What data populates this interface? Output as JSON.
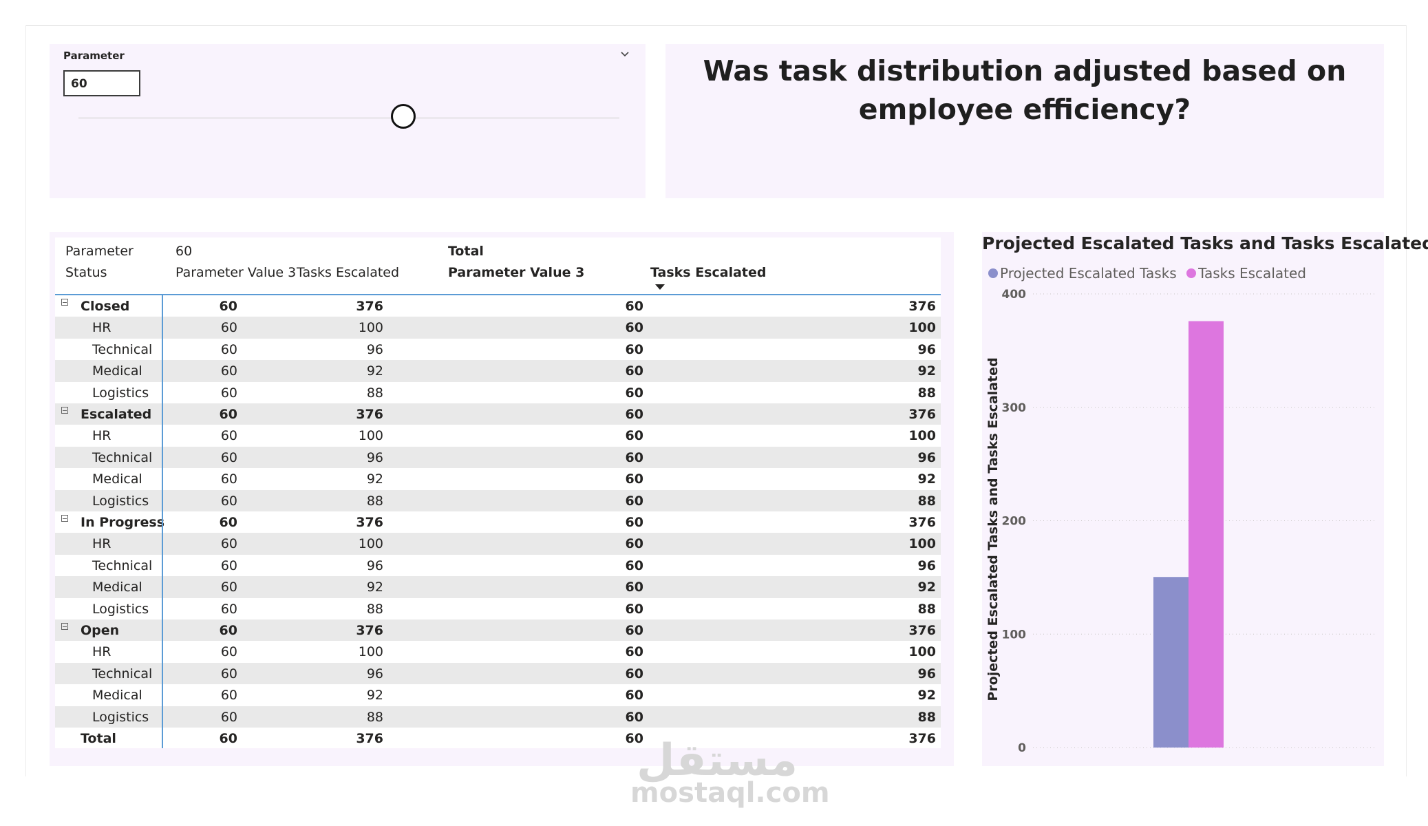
{
  "slicer": {
    "title": "Parameter",
    "value": "60",
    "slider_fraction": 0.6
  },
  "page_title": "Was task distribution adjusted based on employee efficiency?",
  "matrix": {
    "header_row1": {
      "parameter_label": "Parameter",
      "parameter_value": "60",
      "total_label": "Total"
    },
    "header_row2": {
      "status_label": "Status",
      "col1": "Parameter Value 3",
      "col2": "Tasks Escalated",
      "col3": "Parameter Value 3",
      "col4": "Tasks Escalated"
    },
    "rows": [
      {
        "type": "group",
        "label": "Closed",
        "c1": "60",
        "c2": "376",
        "c3": "60",
        "c4": "376"
      },
      {
        "type": "child",
        "label": "HR",
        "c1": "60",
        "c2": "100",
        "c3": "60",
        "c4": "100"
      },
      {
        "type": "child",
        "label": "Technical",
        "c1": "60",
        "c2": "96",
        "c3": "60",
        "c4": "96"
      },
      {
        "type": "child",
        "label": "Medical",
        "c1": "60",
        "c2": "92",
        "c3": "60",
        "c4": "92"
      },
      {
        "type": "child",
        "label": "Logistics",
        "c1": "60",
        "c2": "88",
        "c3": "60",
        "c4": "88"
      },
      {
        "type": "group",
        "label": "Escalated",
        "c1": "60",
        "c2": "376",
        "c3": "60",
        "c4": "376"
      },
      {
        "type": "child",
        "label": "HR",
        "c1": "60",
        "c2": "100",
        "c3": "60",
        "c4": "100"
      },
      {
        "type": "child",
        "label": "Technical",
        "c1": "60",
        "c2": "96",
        "c3": "60",
        "c4": "96"
      },
      {
        "type": "child",
        "label": "Medical",
        "c1": "60",
        "c2": "92",
        "c3": "60",
        "c4": "92"
      },
      {
        "type": "child",
        "label": "Logistics",
        "c1": "60",
        "c2": "88",
        "c3": "60",
        "c4": "88"
      },
      {
        "type": "group",
        "label": "In Progress",
        "c1": "60",
        "c2": "376",
        "c3": "60",
        "c4": "376"
      },
      {
        "type": "child",
        "label": "HR",
        "c1": "60",
        "c2": "100",
        "c3": "60",
        "c4": "100"
      },
      {
        "type": "child",
        "label": "Technical",
        "c1": "60",
        "c2": "96",
        "c3": "60",
        "c4": "96"
      },
      {
        "type": "child",
        "label": "Medical",
        "c1": "60",
        "c2": "92",
        "c3": "60",
        "c4": "92"
      },
      {
        "type": "child",
        "label": "Logistics",
        "c1": "60",
        "c2": "88",
        "c3": "60",
        "c4": "88"
      },
      {
        "type": "group",
        "label": "Open",
        "c1": "60",
        "c2": "376",
        "c3": "60",
        "c4": "376"
      },
      {
        "type": "child",
        "label": "HR",
        "c1": "60",
        "c2": "100",
        "c3": "60",
        "c4": "100"
      },
      {
        "type": "child",
        "label": "Technical",
        "c1": "60",
        "c2": "96",
        "c3": "60",
        "c4": "96"
      },
      {
        "type": "child",
        "label": "Medical",
        "c1": "60",
        "c2": "92",
        "c3": "60",
        "c4": "92"
      },
      {
        "type": "child",
        "label": "Logistics",
        "c1": "60",
        "c2": "88",
        "c3": "60",
        "c4": "88"
      },
      {
        "type": "total",
        "label": "Total",
        "c1": "60",
        "c2": "376",
        "c3": "60",
        "c4": "376"
      }
    ]
  },
  "chart_data": {
    "type": "bar",
    "title": "Projected Escalated Tasks and Tasks Escalated",
    "ylabel": "Projected Escalated Tasks and Tasks Escalated",
    "xlabel": "",
    "categories": [
      ""
    ],
    "series": [
      {
        "name": "Projected Escalated Tasks",
        "values": [
          150.4
        ],
        "color": "#8b8fcb"
      },
      {
        "name": "Tasks Escalated",
        "values": [
          376
        ],
        "color": "#dd76df"
      }
    ],
    "ylim": [
      0,
      400
    ],
    "yticks": [
      "0",
      "100",
      "200",
      "300",
      "400"
    ],
    "grid": true,
    "legend": "top-left"
  },
  "watermark": {
    "arabic": "مستقل",
    "latin": "mostaql.com"
  }
}
